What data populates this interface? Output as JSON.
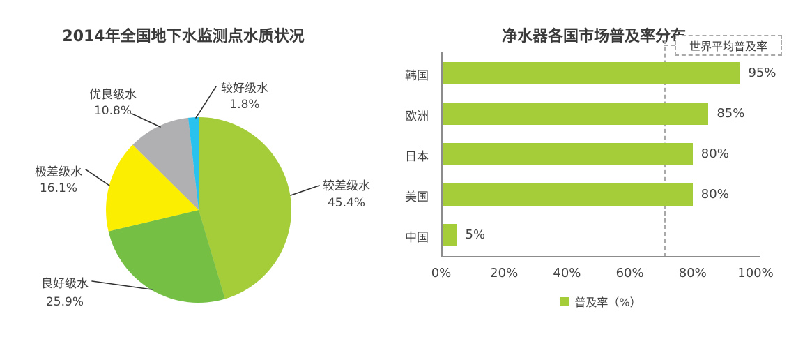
{
  "page": {
    "background": "#ffffff"
  },
  "chart_data": [
    {
      "type": "pie",
      "title": "2014年全国地下水监测点水质状况",
      "labels": [
        "较差级水",
        "良好级水",
        "极差级水",
        "优良级水",
        "较好级水"
      ],
      "values": [
        45.4,
        25.9,
        16.1,
        10.8,
        1.8
      ],
      "value_labels": [
        "45.4%",
        "25.9%",
        "16.1%",
        "10.8%",
        "1.8%"
      ],
      "colors": [
        "#a5cd39",
        "#74bf44",
        "#fcee00",
        "#b0b0b2",
        "#29c1ee"
      ],
      "start_angle_deg": 0,
      "direction": "clockwise",
      "unit": "%",
      "legend_position": "callouts-with-leader-lines"
    },
    {
      "type": "bar",
      "orientation": "horizontal",
      "title": "净水器各国市场普及率分布",
      "categories": [
        "韩国",
        "欧洲",
        "日本",
        "美国",
        "中国"
      ],
      "values": [
        95,
        85,
        80,
        80,
        5
      ],
      "value_labels": [
        "95%",
        "85%",
        "80%",
        "80%",
        "5%"
      ],
      "bar_color": "#a5cd39",
      "xlim": [
        0,
        100
      ],
      "x_ticks": [
        {
          "value": 0,
          "label": "0%"
        },
        {
          "value": 20,
          "label": "20%"
        },
        {
          "value": 40,
          "label": "40%"
        },
        {
          "value": 60,
          "label": "60%"
        },
        {
          "value": 80,
          "label": "80%"
        },
        {
          "value": 100,
          "label": "100%"
        }
      ],
      "grid": false,
      "reference_line": {
        "label": "世界平均普及率",
        "value_pct": 71,
        "style": "dashed"
      },
      "legend": {
        "label": "普及率（%）",
        "swatch_color": "#a5cd39",
        "position": "bottom"
      }
    }
  ]
}
